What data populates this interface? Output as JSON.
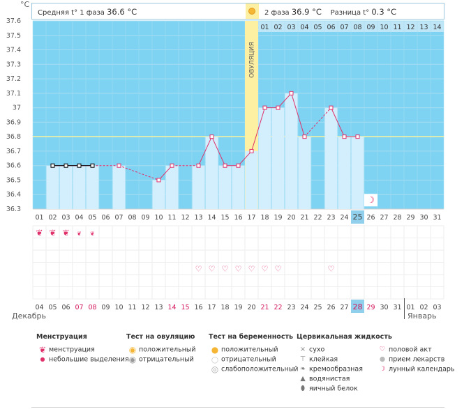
{
  "header": {
    "unit": "°C",
    "phase1_label": "Средняя t° 1 фаза",
    "phase1_value": "36.6 °C",
    "phase2_label": "2 фаза",
    "phase2_value": "36.9 °C",
    "diff_label": "Разница t°",
    "diff_value": "0.3 °C"
  },
  "ovulation_label": "ОВУЛЯЦИЯ",
  "chart_data": {
    "type": "bar",
    "y_ticks": [
      "37.6",
      "37.5",
      "37.4",
      "37.3",
      "37.2",
      "37.1",
      "37",
      "36.9",
      "36.8",
      "36.7",
      "36.6",
      "36.5",
      "36.4",
      "36.3"
    ],
    "ylim": [
      36.3,
      37.6
    ],
    "coverline": 36.8,
    "cycle_days": [
      "01",
      "02",
      "03",
      "04",
      "05",
      "06",
      "07",
      "08",
      "09",
      "10",
      "11",
      "12",
      "13",
      "14",
      "15",
      "16",
      "17",
      "18",
      "19",
      "20",
      "21",
      "22",
      "23",
      "24",
      "25",
      "26",
      "27",
      "28",
      "29",
      "30",
      "31"
    ],
    "current_day": "25",
    "ovulation_day": "17",
    "phase2_day_labels": [
      "01",
      "02",
      "03",
      "04",
      "05",
      "06",
      "07",
      "08",
      "09",
      "10",
      "11",
      "12",
      "13",
      "14"
    ],
    "temperatures": [
      null,
      36.6,
      36.6,
      36.6,
      36.6,
      null,
      36.6,
      null,
      null,
      36.5,
      36.6,
      null,
      36.6,
      36.8,
      36.6,
      36.6,
      36.7,
      37.0,
      37.0,
      37.1,
      36.8,
      null,
      37.0,
      36.8,
      36.8,
      null,
      null,
      null,
      null,
      null,
      null
    ],
    "dates": [
      "04",
      "05",
      "06",
      "07",
      "08",
      "09",
      "10",
      "11",
      "12",
      "13",
      "14",
      "15",
      "16",
      "17",
      "18",
      "19",
      "20",
      "21",
      "22",
      "23",
      "24",
      "25",
      "26",
      "27",
      "28",
      "29",
      "30",
      "31",
      "01",
      "02",
      "03"
    ],
    "weekend_dates": [
      "07",
      "08",
      "14",
      "15",
      "21",
      "22",
      "28",
      "29"
    ],
    "current_date": "28"
  },
  "months": {
    "first": "Декабрь",
    "second": "Январь"
  },
  "menstruation_marks": [
    {
      "day": 1,
      "type": "big"
    },
    {
      "day": 2,
      "type": "big"
    },
    {
      "day": 3,
      "type": "big"
    },
    {
      "day": 4,
      "type": "small"
    },
    {
      "day": 5,
      "type": "small"
    }
  ],
  "sex_days": [
    13,
    14,
    15,
    16,
    17,
    18,
    19,
    23
  ],
  "moon_day": 26,
  "legend": {
    "menstruation": {
      "title": "Менструация",
      "items": [
        "менструация",
        "небольшие выделения"
      ]
    },
    "ovulation_test": {
      "title": "Тест на овуляцию",
      "items": [
        "положительный",
        "отрицательный"
      ]
    },
    "pregnancy_test": {
      "title": "Тест на беременность",
      "items": [
        "положительный",
        "отрицательный",
        "слабоположительный"
      ]
    },
    "cervical": {
      "title": "Цервикальная жидкость",
      "items": [
        "сухо",
        "клейкая",
        "кремообразная",
        "водянистая",
        "яичный белок"
      ]
    },
    "other": {
      "items": [
        "половой акт",
        "прием лекарств",
        "лунный календарь"
      ]
    }
  },
  "colors": {
    "sky": "#7fd3f2",
    "bar": "#d3eefc",
    "ovulation": "#fdf0a2",
    "line": "#e0306a",
    "current_day": "#90d0ec",
    "coverline": "#fdf49a"
  }
}
